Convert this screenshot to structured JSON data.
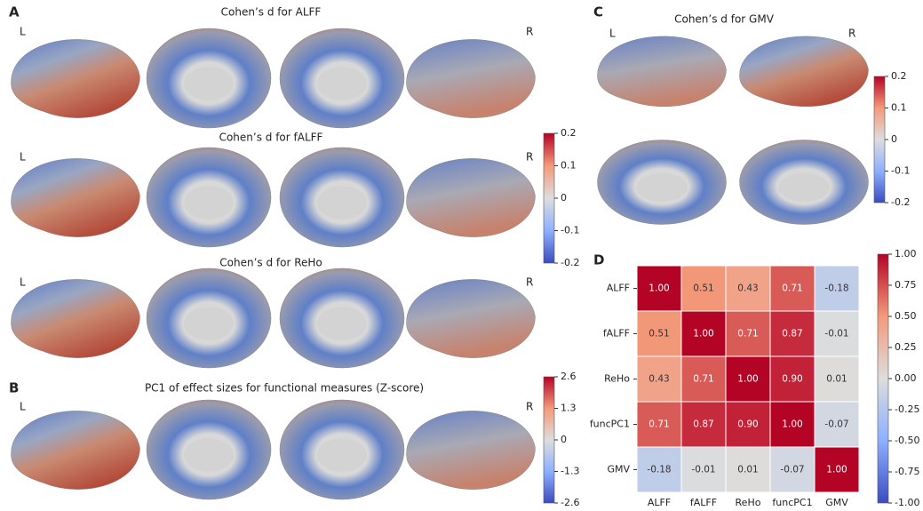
{
  "panel_a": {
    "label": "A",
    "titles": [
      "Cohen’s d for ALFF",
      "Cohen’s d for fALFF",
      "Cohen’s d for ReHo"
    ],
    "colorbar": {
      "lim": [
        -0.2,
        0.2
      ],
      "ticks": [
        0.2,
        0.1,
        0,
        -0.1,
        -0.2
      ]
    }
  },
  "panel_b": {
    "label": "B",
    "title": "PC1 of effect sizes for functional measures (Z-score)",
    "colorbar": {
      "lim": [
        -2.6,
        2.6
      ],
      "ticks": [
        2.6,
        1.3,
        0,
        -1.3,
        -2.6
      ]
    }
  },
  "panel_c": {
    "label": "C",
    "title": "Cohen’s d for GMV",
    "colorbar": {
      "lim": [
        -0.2,
        0.2
      ],
      "ticks": [
        0.2,
        0.1,
        0,
        -0.1,
        -0.2
      ]
    }
  },
  "hemisphere_labels": [
    "L",
    "R"
  ],
  "panel_d": {
    "label": "D"
  },
  "chart_data": {
    "type": "heatmap",
    "categories": [
      "ALFF",
      "fALFF",
      "ReHo",
      "funcPC1",
      "GMV"
    ],
    "values": [
      [
        1.0,
        0.51,
        0.43,
        0.71,
        -0.18
      ],
      [
        0.51,
        1.0,
        0.71,
        0.87,
        -0.01
      ],
      [
        0.43,
        0.71,
        1.0,
        0.9,
        0.01
      ],
      [
        0.71,
        0.87,
        0.9,
        1.0,
        -0.07
      ],
      [
        -0.18,
        -0.01,
        0.01,
        -0.07,
        1.0
      ]
    ],
    "value_labels": [
      [
        "1.00",
        "0.51",
        "0.43",
        "0.71",
        "-0.18"
      ],
      [
        "0.51",
        "1.00",
        "0.71",
        "0.87",
        "-0.01"
      ],
      [
        "0.43",
        "0.71",
        "1.00",
        "0.90",
        "0.01"
      ],
      [
        "0.71",
        "0.87",
        "0.90",
        "1.00",
        "-0.07"
      ],
      [
        "-0.18",
        "-0.01",
        "0.01",
        "-0.07",
        "1.00"
      ]
    ],
    "zlim": [
      -1,
      1
    ],
    "zticks": [
      {
        "value": 1,
        "label": "1.00"
      },
      0.75,
      {
        "value": 0.5,
        "label": "0.50"
      },
      0.25,
      {
        "value": 0,
        "label": "0.00"
      },
      -0.25,
      {
        "value": -0.5,
        "label": "-0.50"
      },
      -0.75,
      {
        "value": -1,
        "label": "-1.00"
      }
    ]
  }
}
